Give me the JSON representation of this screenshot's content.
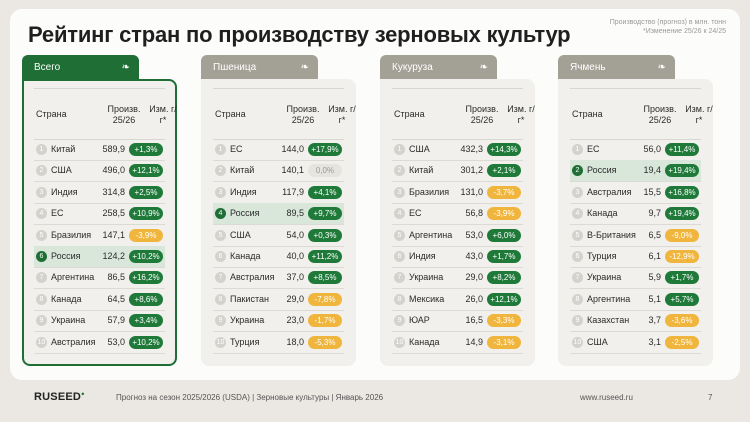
{
  "title": "Рейтинг стран по производству зерновых культур",
  "note": {
    "line1": "Производство (прогноз) в млн. тонн",
    "line2": "*Изменение 25/26 к 24/25"
  },
  "headers": {
    "country": "Страна",
    "prod": "Произв. 25/26",
    "chg": "Изм. г/г*"
  },
  "colors": {
    "active_tab": "#1e6e35",
    "inactive_tab": "#a3a096",
    "positive": "#1f7a3a",
    "negative": "#f0b53c",
    "neutral": "#e6e4df",
    "highlight_row": "#d8e7da"
  },
  "tables": [
    {
      "name": "Всего",
      "active": true,
      "rows": [
        {
          "rank": "1",
          "country": "Китай",
          "value": "589,9",
          "change": "+1,3%",
          "tone": "g"
        },
        {
          "rank": "2",
          "country": "США",
          "value": "496,0",
          "change": "+12,1%",
          "tone": "g"
        },
        {
          "rank": "3",
          "country": "Индия",
          "value": "314,8",
          "change": "+2,5%",
          "tone": "g"
        },
        {
          "rank": "4",
          "country": "ЕС",
          "value": "258,5",
          "change": "+10,9%",
          "tone": "g"
        },
        {
          "rank": "5",
          "country": "Бразилия",
          "value": "147,1",
          "change": "-3,9%",
          "tone": "o"
        },
        {
          "rank": "6",
          "country": "Россия",
          "value": "124,2",
          "change": "+10,2%",
          "tone": "g",
          "highlight": true
        },
        {
          "rank": "7",
          "country": "Аргентина",
          "value": "86,5",
          "change": "+16,2%",
          "tone": "g"
        },
        {
          "rank": "8",
          "country": "Канада",
          "value": "64,5",
          "change": "+8,6%",
          "tone": "g"
        },
        {
          "rank": "9",
          "country": "Украина",
          "value": "57,9",
          "change": "+3,4%",
          "tone": "g"
        },
        {
          "rank": "10",
          "country": "Австралия",
          "value": "53,0",
          "change": "+10,2%",
          "tone": "g"
        }
      ]
    },
    {
      "name": "Пшеница",
      "active": false,
      "rows": [
        {
          "rank": "1",
          "country": "ЕС",
          "value": "144,0",
          "change": "+17,9%",
          "tone": "g"
        },
        {
          "rank": "2",
          "country": "Китай",
          "value": "140,1",
          "change": "0,0%",
          "tone": "n"
        },
        {
          "rank": "3",
          "country": "Индия",
          "value": "117,9",
          "change": "+4,1%",
          "tone": "g"
        },
        {
          "rank": "4",
          "country": "Россия",
          "value": "89,5",
          "change": "+9,7%",
          "tone": "g",
          "highlight": true
        },
        {
          "rank": "5",
          "country": "США",
          "value": "54,0",
          "change": "+0,3%",
          "tone": "g"
        },
        {
          "rank": "6",
          "country": "Канада",
          "value": "40,0",
          "change": "+11,2%",
          "tone": "g"
        },
        {
          "rank": "7",
          "country": "Австралия",
          "value": "37,0",
          "change": "+8,5%",
          "tone": "g"
        },
        {
          "rank": "8",
          "country": "Пакистан",
          "value": "29,0",
          "change": "-7,8%",
          "tone": "o"
        },
        {
          "rank": "9",
          "country": "Украина",
          "value": "23,0",
          "change": "-1,7%",
          "tone": "o"
        },
        {
          "rank": "10",
          "country": "Турция",
          "value": "18,0",
          "change": "-5,3%",
          "tone": "o"
        }
      ]
    },
    {
      "name": "Кукуруза",
      "active": false,
      "rows": [
        {
          "rank": "1",
          "country": "США",
          "value": "432,3",
          "change": "+14,3%",
          "tone": "g"
        },
        {
          "rank": "2",
          "country": "Китай",
          "value": "301,2",
          "change": "+2,1%",
          "tone": "g"
        },
        {
          "rank": "3",
          "country": "Бразилия",
          "value": "131,0",
          "change": "-3,7%",
          "tone": "o"
        },
        {
          "rank": "4",
          "country": "ЕС",
          "value": "56,8",
          "change": "-3,9%",
          "tone": "o"
        },
        {
          "rank": "5",
          "country": "Аргентина",
          "value": "53,0",
          "change": "+6,0%",
          "tone": "g"
        },
        {
          "rank": "6",
          "country": "Индия",
          "value": "43,0",
          "change": "+1,7%",
          "tone": "g"
        },
        {
          "rank": "7",
          "country": "Украина",
          "value": "29,0",
          "change": "+8,2%",
          "tone": "g"
        },
        {
          "rank": "8",
          "country": "Мексика",
          "value": "26,0",
          "change": "+12,1%",
          "tone": "g"
        },
        {
          "rank": "9",
          "country": "ЮАР",
          "value": "16,5",
          "change": "-3,3%",
          "tone": "o"
        },
        {
          "rank": "10",
          "country": "Канада",
          "value": "14,9",
          "change": "-3,1%",
          "tone": "o"
        }
      ]
    },
    {
      "name": "Ячмень",
      "active": false,
      "rows": [
        {
          "rank": "1",
          "country": "ЕС",
          "value": "56,0",
          "change": "+11,4%",
          "tone": "g"
        },
        {
          "rank": "2",
          "country": "Россия",
          "value": "19,4",
          "change": "+19,4%",
          "tone": "g",
          "highlight": true
        },
        {
          "rank": "3",
          "country": "Австралия",
          "value": "15,5",
          "change": "+16,8%",
          "tone": "g"
        },
        {
          "rank": "4",
          "country": "Канада",
          "value": "9,7",
          "change": "+19,4%",
          "tone": "g"
        },
        {
          "rank": "5",
          "country": "В-Британия",
          "value": "6,5",
          "change": "-9,0%",
          "tone": "o"
        },
        {
          "rank": "6",
          "country": "Турция",
          "value": "6,1",
          "change": "-12,9%",
          "tone": "o"
        },
        {
          "rank": "7",
          "country": "Украина",
          "value": "5,9",
          "change": "+1,7%",
          "tone": "g"
        },
        {
          "rank": "8",
          "country": "Аргентина",
          "value": "5,1",
          "change": "+5,7%",
          "tone": "g"
        },
        {
          "rank": "9",
          "country": "Казахстан",
          "value": "3,7",
          "change": "-3,6%",
          "tone": "o"
        },
        {
          "rank": "10",
          "country": "США",
          "value": "3,1",
          "change": "-2,5%",
          "tone": "o"
        }
      ]
    }
  ],
  "footer": {
    "logo": "RUSEED",
    "text": "Прогноз на сезон 2025/2026 (USDA)  |  Зерновые культуры  |  Январь 2026",
    "url": "www.ruseed.ru",
    "page": "7"
  }
}
